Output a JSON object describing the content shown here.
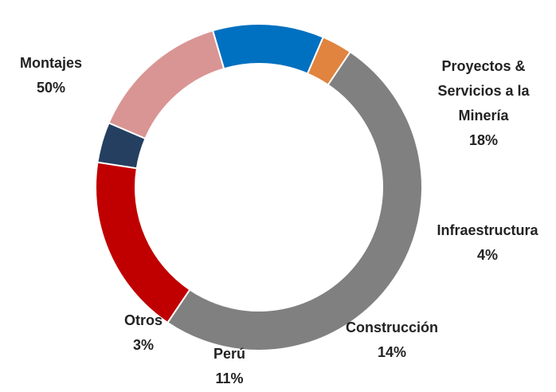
{
  "chart_data": {
    "type": "donut",
    "categories": [
      "Montajes",
      "Proyectos & Servicios a la Minería",
      "Infraestructura",
      "Construcción",
      "Perú",
      "Otros"
    ],
    "values": [
      50,
      18,
      4,
      14,
      11,
      3
    ],
    "value_labels": [
      "50%",
      "18%",
      "4%",
      "14%",
      "11%",
      "3%"
    ],
    "colors": [
      "#808080",
      "#c00000",
      "#243f60",
      "#d99594",
      "#0070c0",
      "#e0843f"
    ]
  }
}
